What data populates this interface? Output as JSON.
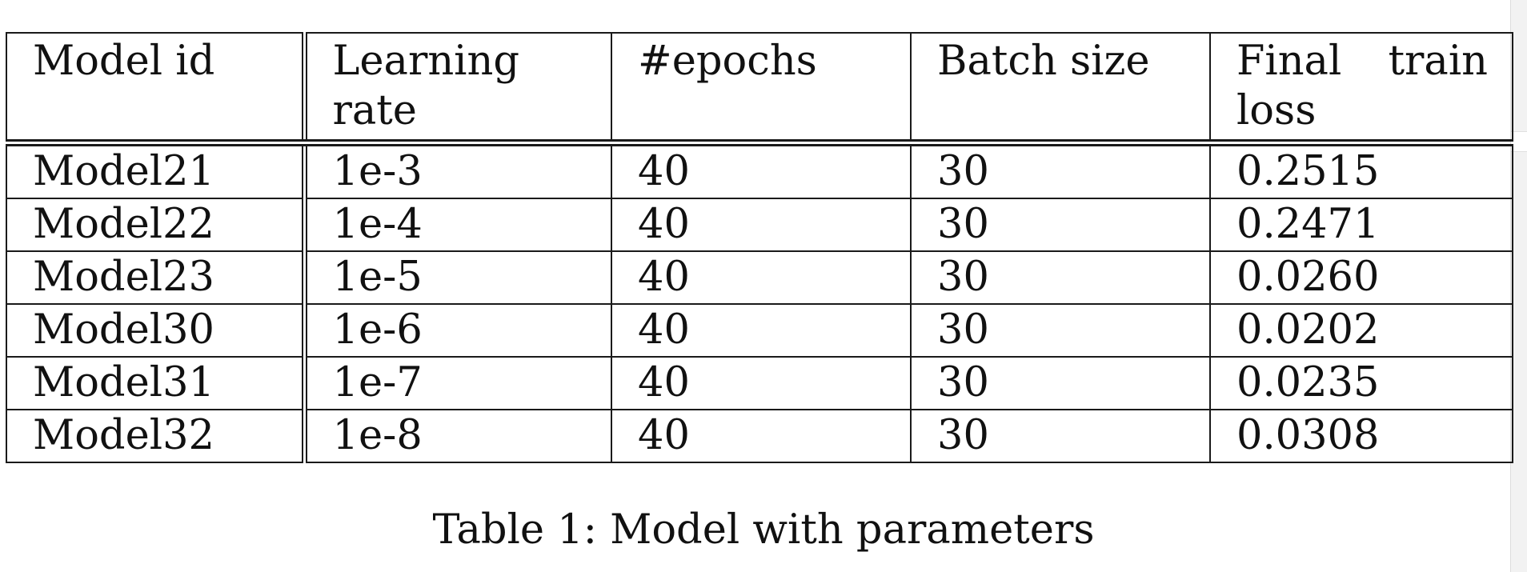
{
  "table": {
    "columns": [
      "Model id",
      "Learning rate",
      "#epochs",
      "Batch size",
      "Final train loss"
    ],
    "final_head_parts": [
      "Final",
      "train",
      "loss"
    ],
    "rows": [
      [
        "Model21",
        "1e-3",
        "40",
        "30",
        "0.2515"
      ],
      [
        "Model22",
        "1e-4",
        "40",
        "30",
        "0.2471"
      ],
      [
        "Model23",
        "1e-5",
        "40",
        "30",
        "0.0260"
      ],
      [
        "Model30",
        "1e-6",
        "40",
        "30",
        "0.0202"
      ],
      [
        "Model31",
        "1e-7",
        "40",
        "30",
        "0.0235"
      ],
      [
        "Model32",
        "1e-8",
        "40",
        "30",
        "0.0308"
      ]
    ]
  },
  "caption": "Table 1: Model with parameters"
}
